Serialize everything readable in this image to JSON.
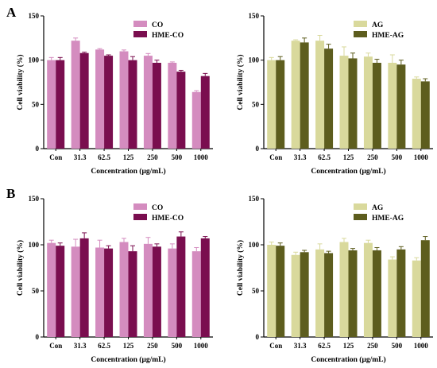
{
  "panels": [
    {
      "letter": "A"
    },
    {
      "letter": "B"
    }
  ],
  "colors": {
    "CO": "#d48cbf",
    "HME-CO": "#7a0e4f",
    "AG": "#d9d99c",
    "HME-AG": "#5d5d1e"
  },
  "chart_data": [
    {
      "type": "bar",
      "panel": "A",
      "title": "",
      "xlabel": "Concentration (μg/mL)",
      "ylabel": "Cell viability (%)",
      "ylim": [
        0,
        150
      ],
      "yticks": [
        "0",
        "50",
        "100",
        "150"
      ],
      "categories": [
        "Con",
        "31.3",
        "62.5",
        "125",
        "250",
        "500",
        "1000"
      ],
      "legend_position": "top-right",
      "series": [
        {
          "name": "CO",
          "color_key": "CO",
          "values": [
            100,
            122,
            112,
            110,
            105,
            97,
            64
          ],
          "errors": [
            3,
            3,
            1,
            1.5,
            2.5,
            1,
            1.5
          ]
        },
        {
          "name": "HME-CO",
          "color_key": "HME-CO",
          "values": [
            100,
            108,
            105,
            100,
            97,
            87,
            82
          ],
          "errors": [
            3,
            1,
            1,
            4,
            3,
            1.5,
            3
          ]
        }
      ]
    },
    {
      "type": "bar",
      "panel": "A",
      "title": "",
      "xlabel": "Concentration (μg/mL)",
      "ylabel": "Cell viability (%)",
      "ylim": [
        0,
        150
      ],
      "yticks": [
        "0",
        "50",
        "100",
        "150"
      ],
      "categories": [
        "Con",
        "31.3",
        "62.5",
        "125",
        "250",
        "500",
        "1000"
      ],
      "legend_position": "top-right",
      "series": [
        {
          "name": "AG",
          "color_key": "AG",
          "values": [
            100,
            122,
            122,
            105,
            104,
            97,
            79
          ],
          "errors": [
            3,
            1,
            6,
            10,
            4,
            9,
            2
          ]
        },
        {
          "name": "HME-AG",
          "color_key": "HME-AG",
          "values": [
            100,
            120,
            113,
            102,
            97,
            95,
            76
          ],
          "errors": [
            4,
            5,
            5,
            6,
            4,
            5,
            3
          ]
        }
      ]
    },
    {
      "type": "bar",
      "panel": "B",
      "title": "",
      "xlabel": "Concentration (μg/mL)",
      "ylabel": "Cell viability (%)",
      "ylim": [
        0,
        150
      ],
      "yticks": [
        "0",
        "50",
        "100",
        "150"
      ],
      "categories": [
        "Con",
        "31.3",
        "62.5",
        "125",
        "250",
        "500",
        "1000"
      ],
      "legend_position": "top-right",
      "series": [
        {
          "name": "CO",
          "color_key": "CO",
          "values": [
            102,
            98,
            97,
            103,
            101,
            96,
            93
          ],
          "errors": [
            3,
            8,
            8,
            4,
            7,
            5,
            4
          ]
        },
        {
          "name": "HME-CO",
          "color_key": "HME-CO",
          "values": [
            99,
            107,
            96,
            93,
            98,
            109,
            107
          ],
          "errors": [
            3,
            6,
            3,
            6,
            3,
            5,
            2
          ]
        }
      ]
    },
    {
      "type": "bar",
      "panel": "B",
      "title": "",
      "xlabel": "Concentration (μg/mL)",
      "ylabel": "Cell viability (%)",
      "ylim": [
        0,
        150
      ],
      "yticks": [
        "0",
        "50",
        "100",
        "150"
      ],
      "categories": [
        "Con",
        "31.3",
        "62.5",
        "125",
        "250",
        "500",
        "1000"
      ],
      "legend_position": "top-right",
      "series": [
        {
          "name": "AG",
          "color_key": "AG",
          "values": [
            100,
            89,
            95,
            103,
            102,
            84,
            83
          ],
          "errors": [
            3,
            3,
            6,
            4,
            3,
            3,
            3
          ]
        },
        {
          "name": "HME-AG",
          "color_key": "HME-AG",
          "values": [
            99,
            92,
            91,
            94,
            94,
            95,
            105
          ],
          "errors": [
            3,
            2,
            2,
            2,
            3,
            3,
            4
          ]
        }
      ]
    }
  ]
}
